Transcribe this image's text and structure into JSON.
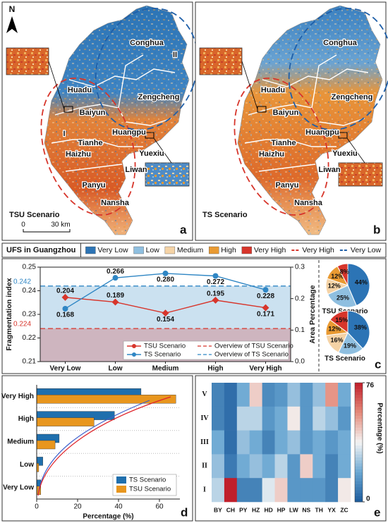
{
  "maps": [
    {
      "panel": "a",
      "scenario": "TSU Scenario",
      "north": "N",
      "scale_labels": [
        "0",
        "30 km"
      ],
      "labels": [
        "Conghua",
        "II",
        "Huadu",
        "Zengcheng",
        "Baiyun",
        "I",
        "Huangpu",
        "Tianhe",
        "Haizhu",
        "Yuexiu",
        "Liwan",
        "Panyu",
        "Nansha"
      ]
    },
    {
      "panel": "b",
      "scenario": "TS Scenario",
      "labels": [
        "Conghua",
        "Huadu",
        "Zengcheng",
        "Baiyun",
        "Huangpu",
        "Tianhe",
        "Haizhu",
        "Yuexiu",
        "Liwan",
        "Panyu",
        "Nansha"
      ]
    }
  ],
  "chart_data": [
    {
      "type": "line",
      "panel": "c",
      "title": "UFS in Guangzhou",
      "classes": [
        {
          "name": "Very Low",
          "color": "#2c74b5"
        },
        {
          "name": "Low",
          "color": "#8fbfe0"
        },
        {
          "name": "Medium",
          "color": "#f5d3a6"
        },
        {
          "name": "High",
          "color": "#e99a32"
        },
        {
          "name": "Very High",
          "color": "#d7352b"
        }
      ],
      "zones": [
        {
          "name": "Very High",
          "color": "#d7352b"
        },
        {
          "name": "Very Low",
          "color": "#1f5fa8"
        }
      ],
      "categories": [
        "Very Low",
        "Low",
        "Medium",
        "High",
        "Very High"
      ],
      "series": [
        {
          "name": "TSU Scenario",
          "color": "#d7352b",
          "axis": "y2",
          "values": [
            0.204,
            0.189,
            0.154,
            0.195,
            0.171
          ],
          "value_labels": [
            "0.204",
            "0.189",
            "0.154",
            "0.195",
            "0.171"
          ]
        },
        {
          "name": "TS Scenario",
          "color": "#2f86c4",
          "axis": "y2",
          "values": [
            0.168,
            0.266,
            0.28,
            0.272,
            0.228
          ],
          "value_labels": [
            "0.168",
            "0.266",
            "0.280",
            "0.272",
            "0.228"
          ]
        }
      ],
      "reference_lines": [
        {
          "name": "Overview of TSU Scenario",
          "value": 0.224,
          "color": "#d7352b"
        },
        {
          "name": "Overview of TS Scenario",
          "value": 0.242,
          "color": "#2f86c4"
        }
      ],
      "ylabel": "Fragmentation index",
      "ylim": [
        0.21,
        0.25
      ],
      "yticks": [
        0.21,
        0.22,
        0.23,
        0.24,
        0.25
      ],
      "y2label": "Area Percentage",
      "y2lim": [
        0,
        0.3
      ],
      "y2ticks": [
        {
          "value": 0,
          "label": "0.0"
        },
        0.1,
        0.2,
        0.3
      ]
    },
    {
      "type": "pie",
      "label": "TSU Scenario",
      "values": [
        44,
        25,
        12,
        12,
        8
      ],
      "value_labels": [
        "44%",
        "25%",
        "12%",
        "12%",
        "8%"
      ],
      "colors": [
        "#2c74b5",
        "#8fbfe0",
        "#f5d3a6",
        "#e99a32",
        "#d7352b"
      ]
    },
    {
      "type": "pie",
      "label": "TS Scenario",
      "values": [
        38,
        19,
        16,
        12,
        15
      ],
      "value_labels": [
        "38%",
        "19%",
        "16%",
        "12%",
        "15%"
      ],
      "colors": [
        "#2c74b5",
        "#8fbfe0",
        "#f5d3a6",
        "#e99a32",
        "#d7352b"
      ]
    },
    {
      "type": "barh",
      "panel": "d",
      "categories": [
        "Very Low",
        "Low",
        "Medium",
        "High",
        "Very High"
      ],
      "series": [
        {
          "name": "TS Scenario",
          "color": "#1f6fad",
          "values": [
            2,
            3,
            11,
            38,
            51
          ]
        },
        {
          "name": "TSU Scenario",
          "color": "#e8961e",
          "values": [
            2,
            1,
            9,
            28,
            68
          ]
        }
      ],
      "xlabel": "Percentage (%)",
      "xlim": [
        0,
        70
      ],
      "xticks": [
        0,
        20,
        40,
        60
      ]
    },
    {
      "type": "heatmap",
      "panel": "e",
      "x": [
        "BY",
        "CH",
        "PY",
        "HZ",
        "HD",
        "HP",
        "LW",
        "NS",
        "TH",
        "YX",
        "ZC"
      ],
      "y": [
        "V",
        "IV",
        "III",
        "II",
        "I"
      ],
      "values": [
        [
          10,
          5,
          20,
          45,
          12,
          15,
          25,
          15,
          25,
          55,
          20
        ],
        [
          10,
          5,
          30,
          30,
          15,
          20,
          40,
          15,
          30,
          25,
          15
        ],
        [
          20,
          5,
          25,
          20,
          10,
          20,
          25,
          15,
          20,
          15,
          20
        ],
        [
          25,
          8,
          20,
          25,
          20,
          30,
          15,
          45,
          20,
          10,
          20
        ],
        [
          30,
          76,
          10,
          10,
          35,
          45,
          15,
          15,
          15,
          10,
          40
        ]
      ],
      "colorbar_label": "Percentage (%)",
      "clim": [
        0,
        76
      ],
      "cticks": [
        0,
        76
      ]
    }
  ]
}
